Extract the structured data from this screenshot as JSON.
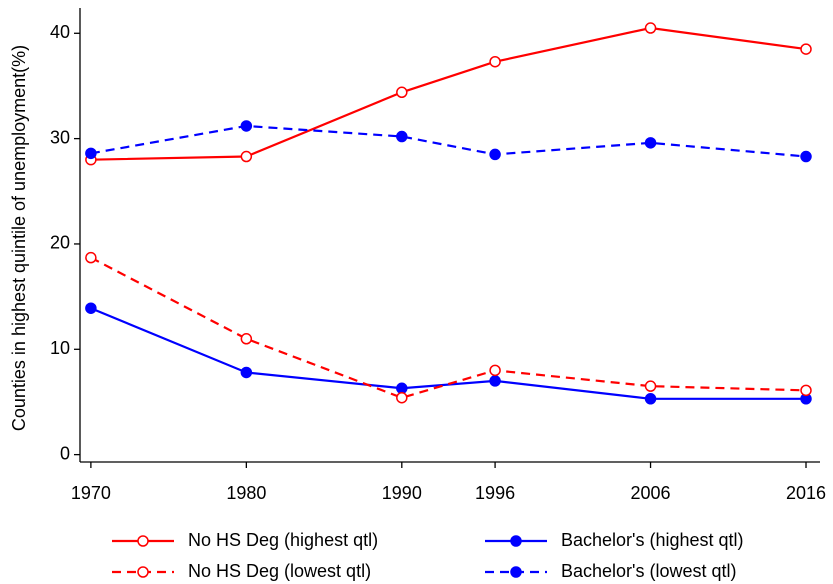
{
  "chart_data": {
    "type": "line",
    "y_label": "Counties in highest quintile of unemployment(%)",
    "x": [
      1970,
      1980,
      1990,
      1996,
      2006,
      2016
    ],
    "xlim": [
      1969.3,
      2016.9
    ],
    "xticks": [
      1970,
      1980,
      1990,
      1996,
      2006,
      2016
    ],
    "ylim": [
      -0.7,
      42.4
    ],
    "yticks": [
      0,
      10,
      20,
      30,
      40
    ],
    "grid": false,
    "series": [
      {
        "name": "No HS Deg (highest qtl)",
        "color": "#ff0000",
        "dashed": false,
        "marker": "open",
        "values": [
          28.0,
          28.3,
          34.4,
          37.3,
          40.5,
          38.5
        ]
      },
      {
        "name": "Bachelor's (highest qtl)",
        "color": "#0000ff",
        "dashed": false,
        "marker": "filled",
        "values": [
          13.9,
          7.8,
          6.3,
          7.0,
          5.3,
          5.3
        ]
      },
      {
        "name": "No HS Deg (lowest qtl)",
        "color": "#ff0000",
        "dashed": true,
        "marker": "open",
        "values": [
          18.7,
          11.0,
          5.4,
          8.0,
          6.5,
          6.1
        ]
      },
      {
        "name": "Bachelor's (lowest qtl)",
        "color": "#0000ff",
        "dashed": true,
        "marker": "filled",
        "values": [
          28.6,
          31.2,
          30.2,
          28.5,
          29.6,
          28.3
        ]
      }
    ]
  }
}
